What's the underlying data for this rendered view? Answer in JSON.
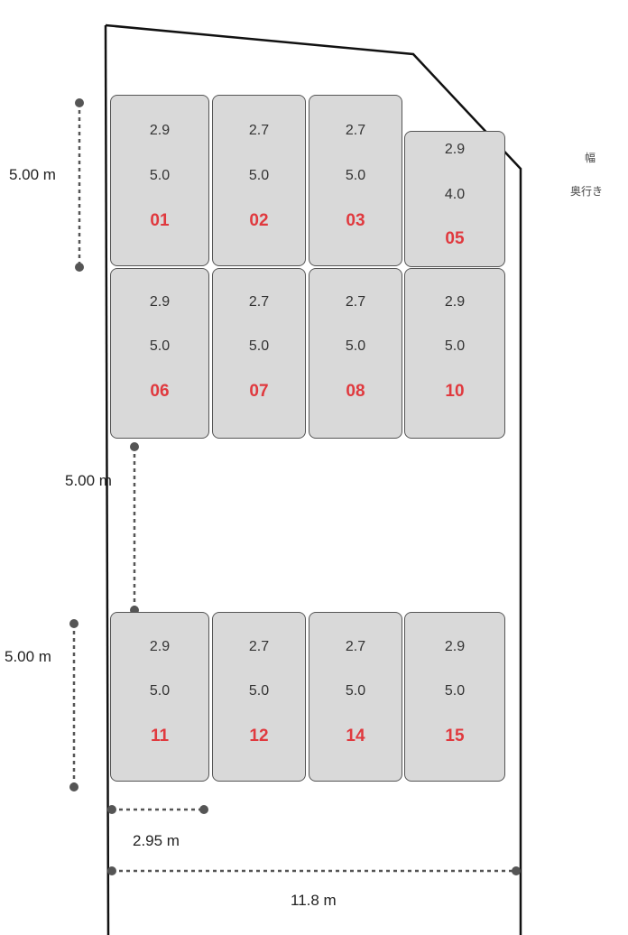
{
  "legend": {
    "width": "幅",
    "depth": "奥行き"
  },
  "dimensions": {
    "row1_depth": "5.00 m",
    "aisle_depth": "5.00 m",
    "row3_depth": "5.00 m",
    "space_width": "2.95 m",
    "total_width": "11.8 m"
  },
  "colors": {
    "space_fill": "#d9d9d9",
    "number": "#e0393e",
    "boundary": "#111111"
  },
  "spaces": [
    {
      "id": "01",
      "width": "2.9",
      "depth": "5.0"
    },
    {
      "id": "02",
      "width": "2.7",
      "depth": "5.0"
    },
    {
      "id": "03",
      "width": "2.7",
      "depth": "5.0"
    },
    {
      "id": "05",
      "width": "2.9",
      "depth": "4.0"
    },
    {
      "id": "06",
      "width": "2.9",
      "depth": "5.0"
    },
    {
      "id": "07",
      "width": "2.7",
      "depth": "5.0"
    },
    {
      "id": "08",
      "width": "2.7",
      "depth": "5.0"
    },
    {
      "id": "10",
      "width": "2.9",
      "depth": "5.0"
    },
    {
      "id": "11",
      "width": "2.9",
      "depth": "5.0"
    },
    {
      "id": "12",
      "width": "2.7",
      "depth": "5.0"
    },
    {
      "id": "14",
      "width": "2.7",
      "depth": "5.0"
    },
    {
      "id": "15",
      "width": "2.9",
      "depth": "5.0"
    }
  ]
}
